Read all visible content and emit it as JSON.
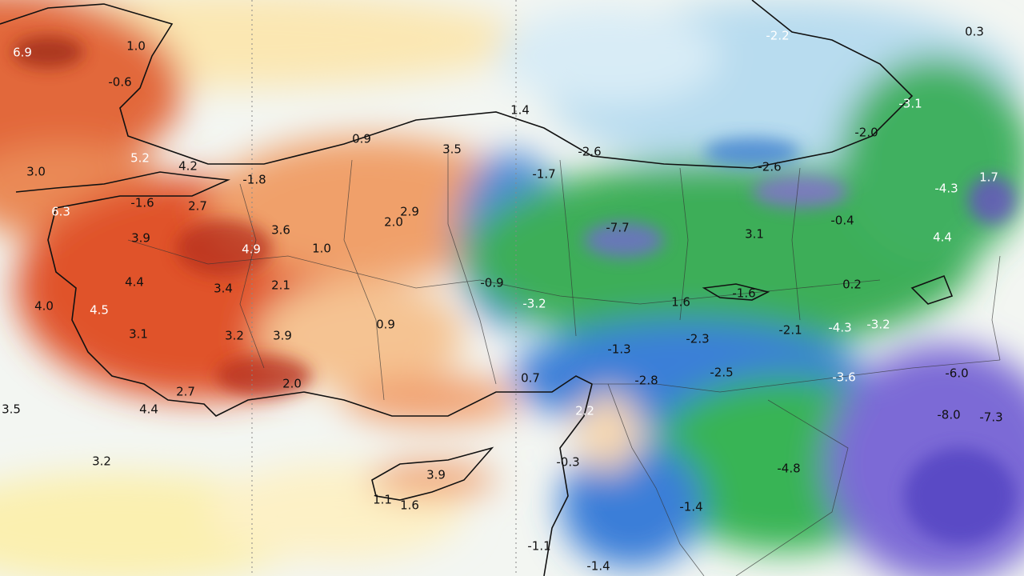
{
  "labels": [
    "6.9",
    "1.0",
    "-0.6",
    "5.2",
    "4.2",
    "3.0",
    "-1.8",
    "0.9",
    "3.5",
    "1.4",
    "-2.2",
    "0.3",
    "-3.1",
    "-2.0",
    "-2.6",
    "-1.7",
    "-2.6",
    "-4.3",
    "1.7",
    "-1.6",
    "2.7",
    "6.3",
    "2.9",
    "2.0",
    "-7.7",
    "3.1",
    "-0.4",
    "4.4",
    "3.9",
    "3.6",
    "4.9",
    "1.0",
    "4.4",
    "3.4",
    "2.1",
    "-0.9",
    "-3.2",
    "1.6",
    "-1.6",
    "0.2",
    "4.0",
    "4.5",
    "3.1",
    "3.2",
    "3.9",
    "0.9",
    "-2.1",
    "-4.3",
    "-3.2",
    "-2.3",
    "-1.3",
    "0.7",
    "-2.8",
    "-2.5",
    "-3.6",
    "-6.0",
    "2.0",
    "2.7",
    "4.4",
    "2.2",
    "-8.0",
    "-7.3",
    "3.5",
    "-0.3",
    "3.2",
    "3.9",
    "1.1",
    "1.6",
    "-4.8",
    "-1.4",
    "-1.1",
    "-1.4"
  ]
}
